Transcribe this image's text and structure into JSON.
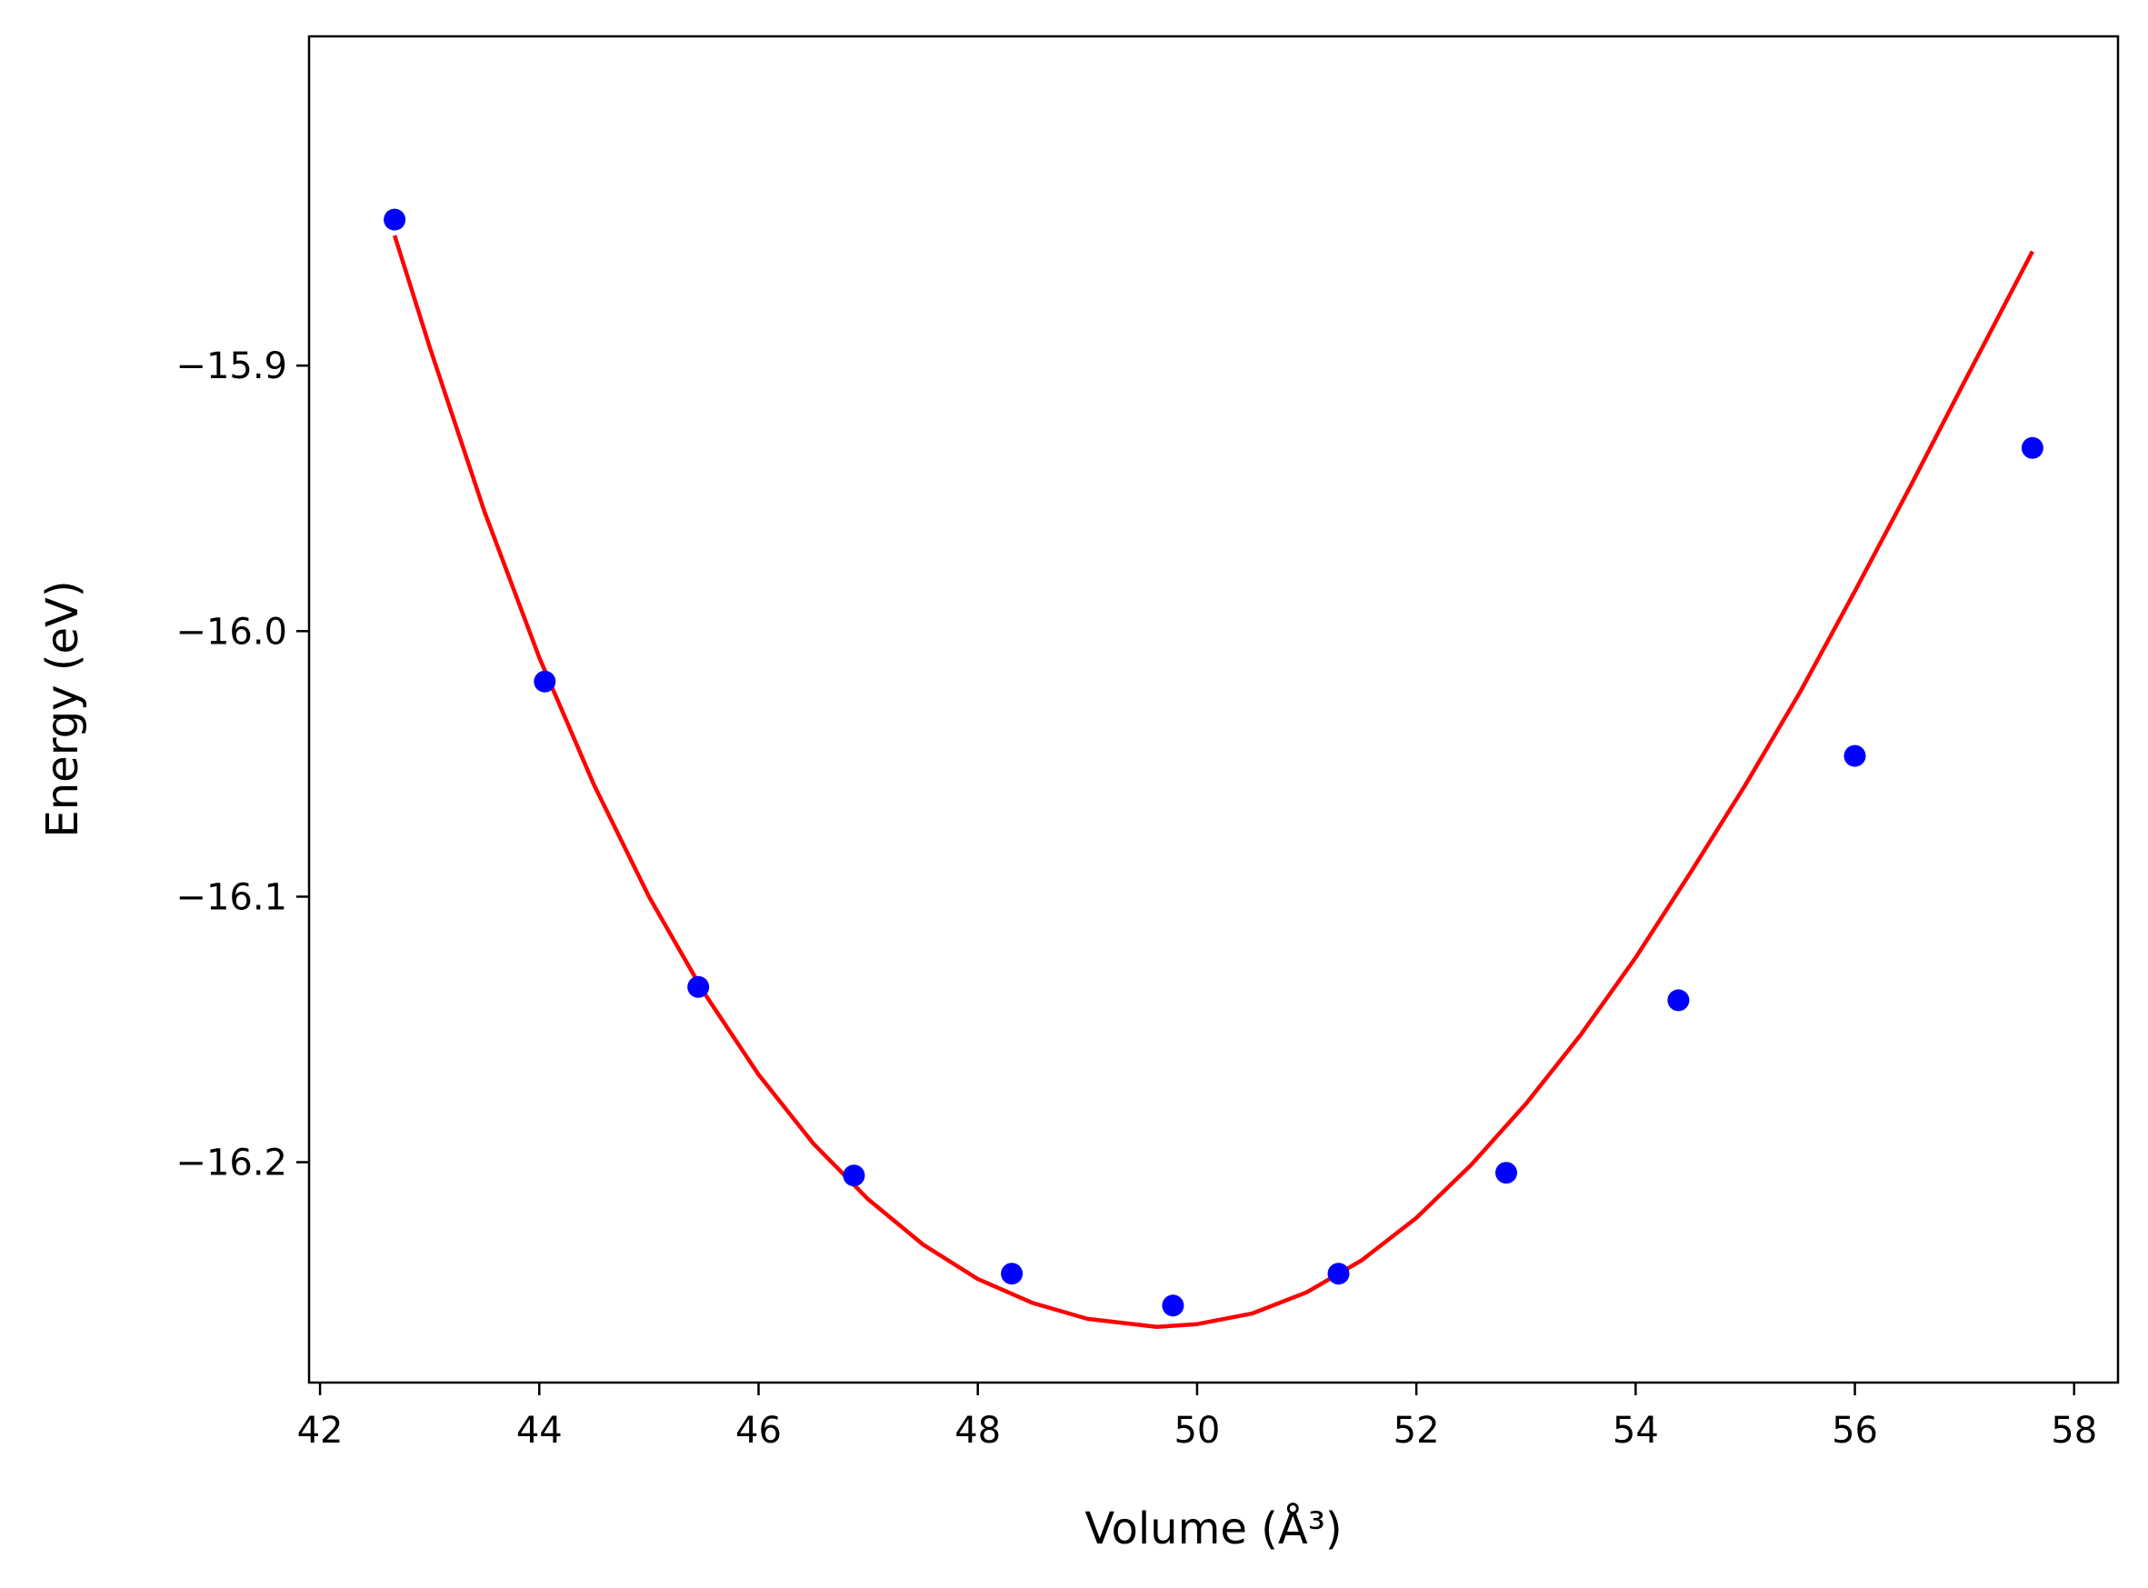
{
  "chart_data": {
    "type": "scatter",
    "title": "",
    "xlabel": "Volume (Å³)",
    "ylabel": "Energy (eV)",
    "xlim": [
      41.9,
      58.4
    ],
    "ylim": [
      -16.283,
      -15.776
    ],
    "x_ticks": [
      42,
      44,
      46,
      48,
      50,
      52,
      54,
      56,
      58
    ],
    "x_tick_labels": [
      "42",
      "44",
      "46",
      "48",
      "50",
      "52",
      "54",
      "56",
      "58"
    ],
    "y_ticks": [
      -15.9,
      -16.0,
      -16.1,
      -16.2
    ],
    "y_tick_labels": [
      "−15.9",
      "−16.0",
      "−16.1",
      "−16.2"
    ],
    "grid": false,
    "legend": "none",
    "series": [
      {
        "kind": "scatter",
        "color": "#0000ff",
        "x": [
          42.68,
          44.05,
          45.45,
          46.87,
          48.31,
          49.78,
          51.29,
          52.82,
          54.39,
          56.0,
          57.62
        ],
        "y": [
          -15.845,
          -16.019,
          -16.134,
          -16.205,
          -16.242,
          -16.254,
          -16.242,
          -16.204,
          -16.139,
          -16.047,
          -15.931
        ]
      },
      {
        "kind": "line",
        "color": "#ff0000",
        "x": [
          42.68,
          43.0,
          43.5,
          44.0,
          44.5,
          45.0,
          45.5,
          46.0,
          46.5,
          47.0,
          47.5,
          48.0,
          48.5,
          49.0,
          49.63,
          50.0,
          50.5,
          51.0,
          51.5,
          52.0,
          52.5,
          53.0,
          53.5,
          54.0,
          54.5,
          55.0,
          55.5,
          56.0,
          56.5,
          57.0,
          57.62
        ],
        "y": [
          -15.851,
          -15.893,
          -15.955,
          -16.01,
          -16.058,
          -16.1,
          -16.136,
          -16.167,
          -16.193,
          -16.214,
          -16.231,
          -16.244,
          -16.253,
          -16.259,
          -16.262,
          -16.261,
          -16.257,
          -16.249,
          -16.237,
          -16.221,
          -16.201,
          -16.178,
          -16.152,
          -16.123,
          -16.091,
          -16.058,
          -16.023,
          -15.985,
          -15.946,
          -15.906,
          -15.857
        ]
      }
    ]
  }
}
